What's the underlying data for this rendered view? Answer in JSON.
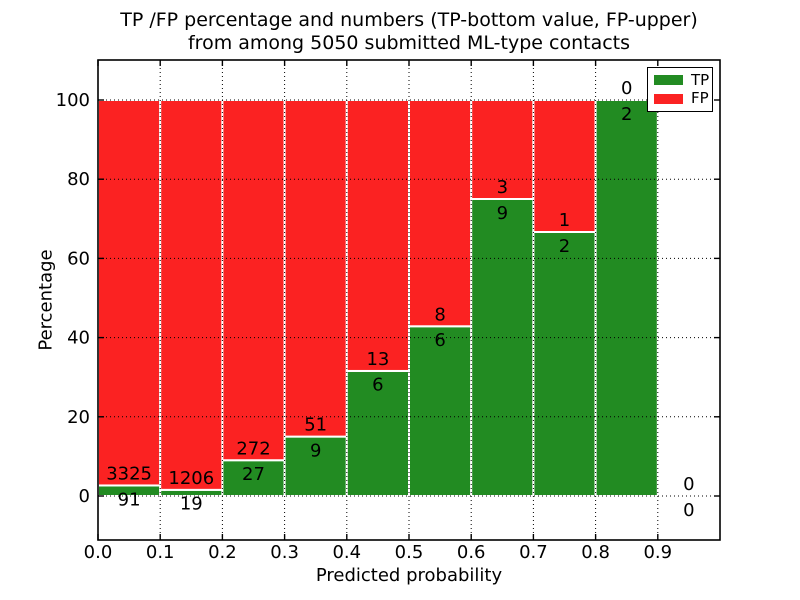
{
  "chart_data": {
    "type": "bar",
    "stacked": true,
    "title": "TP /FP percentage and numbers (TP-bottom value, FP-upper)\nfrom among 5050 submitted ML-type contacts",
    "title_lines": [
      "TP /FP percentage and numbers (TP-bottom value, FP-upper)",
      "from among 5050 submitted ML-type contacts"
    ],
    "xlabel": "Predicted probability",
    "ylabel": "Percentage",
    "total_submitted": 5050,
    "xlim": [
      0.0,
      1.0
    ],
    "ylim": [
      -11,
      111
    ],
    "bin_edges": [
      0.0,
      0.1,
      0.2,
      0.3,
      0.4,
      0.5,
      0.6,
      0.7,
      0.8,
      0.9,
      1.0
    ],
    "xticks": [
      0.0,
      0.1,
      0.2,
      0.3,
      0.4,
      0.5,
      0.6,
      0.7,
      0.8,
      0.9
    ],
    "xtick_labels": [
      "0.0",
      "0.1",
      "0.2",
      "0.3",
      "0.4",
      "0.5",
      "0.6",
      "0.7",
      "0.8",
      "0.9"
    ],
    "yticks": [
      0,
      20,
      40,
      60,
      80,
      100
    ],
    "ytick_labels": [
      "0",
      "20",
      "40",
      "60",
      "80",
      "100"
    ],
    "grid": true,
    "bar_edge_color": "#ffffff",
    "series": [
      {
        "name": "TP",
        "color": "#228b22",
        "values": [
          91,
          19,
          27,
          9,
          6,
          6,
          9,
          2,
          2,
          0
        ]
      },
      {
        "name": "FP",
        "color": "#fb2222",
        "values": [
          3325,
          1206,
          272,
          51,
          13,
          8,
          3,
          1,
          0,
          0
        ]
      }
    ],
    "legend": {
      "position": "upper right",
      "entries": [
        "TP",
        "FP"
      ]
    }
  }
}
